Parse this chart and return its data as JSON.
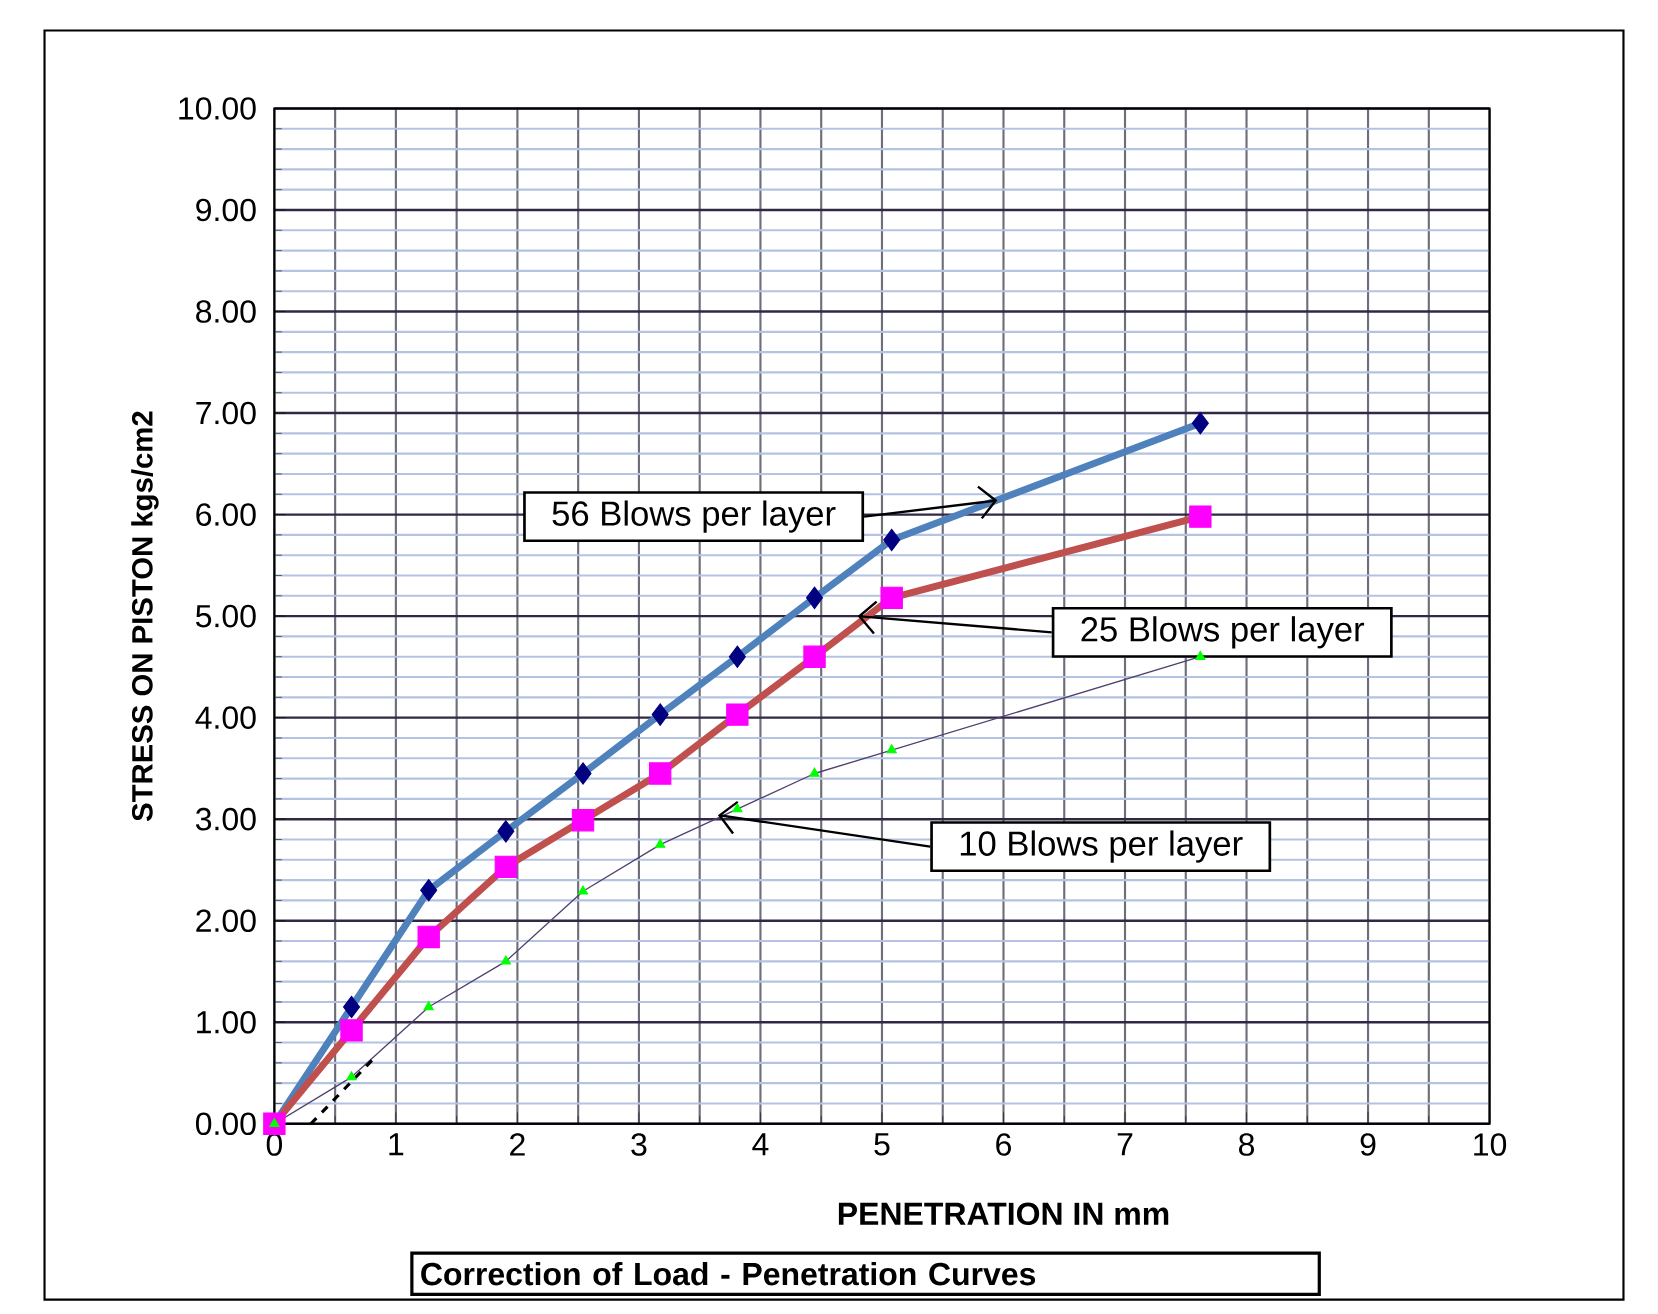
{
  "chart_data": {
    "type": "line",
    "title": "Correction of Load - Penetration Curves",
    "xlabel": "PENETRATION IN mm",
    "ylabel": "STRESS ON PISTON kgs/cm2",
    "xlim": [
      0,
      10
    ],
    "xticks": [
      0,
      {
        "value": 0.5,
        "label": null
      },
      1,
      {
        "value": 1.5,
        "label": null
      },
      2,
      {
        "value": 2.5,
        "label": null
      },
      3,
      {
        "value": 3.5,
        "label": null
      },
      4,
      {
        "value": 4.5,
        "label": null
      },
      5,
      {
        "value": 5.5,
        "label": null
      },
      6,
      {
        "value": 6.5,
        "label": null
      },
      7,
      {
        "value": 7.5,
        "label": null
      },
      8,
      {
        "value": 8.5,
        "label": null
      },
      9,
      {
        "value": 9.5,
        "label": null
      },
      10
    ],
    "ylim": [
      0,
      10
    ],
    "yticks": [
      {
        "value": 0,
        "label": "0.00"
      },
      {
        "value": 0.2,
        "label": null
      },
      {
        "value": 0.4,
        "label": null
      },
      {
        "value": 0.6,
        "label": null
      },
      {
        "value": 0.8,
        "label": null
      },
      {
        "value": 1,
        "label": "1.00"
      },
      {
        "value": 1.2,
        "label": null
      },
      {
        "value": 1.4,
        "label": null
      },
      {
        "value": 1.6,
        "label": null
      },
      {
        "value": 1.8,
        "label": null
      },
      {
        "value": 2,
        "label": "2.00"
      },
      {
        "value": 2.2,
        "label": null
      },
      {
        "value": 2.4,
        "label": null
      },
      {
        "value": 2.6,
        "label": null
      },
      {
        "value": 2.8,
        "label": null
      },
      {
        "value": 3,
        "label": "3.00"
      },
      {
        "value": 3.2,
        "label": null
      },
      {
        "value": 3.4,
        "label": null
      },
      {
        "value": 3.6,
        "label": null
      },
      {
        "value": 3.8,
        "label": null
      },
      {
        "value": 4,
        "label": "4.00"
      },
      {
        "value": 4.2,
        "label": null
      },
      {
        "value": 4.4,
        "label": null
      },
      {
        "value": 4.6,
        "label": null
      },
      {
        "value": 4.8,
        "label": null
      },
      {
        "value": 5,
        "label": "5.00"
      },
      {
        "value": 5.2,
        "label": null
      },
      {
        "value": 5.4,
        "label": null
      },
      {
        "value": 5.6,
        "label": null
      },
      {
        "value": 5.8,
        "label": null
      },
      {
        "value": 6,
        "label": "6.00"
      },
      {
        "value": 6.2,
        "label": null
      },
      {
        "value": 6.4,
        "label": null
      },
      {
        "value": 6.6,
        "label": null
      },
      {
        "value": 6.8,
        "label": null
      },
      {
        "value": 7,
        "label": "7.00"
      },
      {
        "value": 7.2,
        "label": null
      },
      {
        "value": 7.4,
        "label": null
      },
      {
        "value": 7.6,
        "label": null
      },
      {
        "value": 7.8,
        "label": null
      },
      {
        "value": 8,
        "label": "8.00"
      },
      {
        "value": 8.2,
        "label": null
      },
      {
        "value": 8.4,
        "label": null
      },
      {
        "value": 8.6,
        "label": null
      },
      {
        "value": 8.8,
        "label": null
      },
      {
        "value": 9,
        "label": "9.00"
      },
      {
        "value": 9.2,
        "label": null
      },
      {
        "value": 9.4,
        "label": null
      },
      {
        "value": 9.6,
        "label": null
      },
      {
        "value": 9.8,
        "label": null
      },
      {
        "value": 10,
        "label": "10.00"
      }
    ],
    "grid": true,
    "series": [
      {
        "color": "#4f81bd",
        "colors": [
          "#000080",
          "#000080",
          "#000080",
          "#000080",
          "#000080",
          "#000080",
          "#000080",
          "#000080",
          "#000080",
          "#000080"
        ],
        "marker": "diamond",
        "x": [
          0,
          0.635,
          1.27,
          1.905,
          2.54,
          3.175,
          3.81,
          4.445,
          5.08,
          7.62
        ],
        "values": [
          0,
          1.15,
          2.3,
          2.88,
          3.45,
          4.03,
          4.6,
          5.18,
          5.75,
          6.9
        ]
      },
      {
        "color": "#c0504d",
        "colors": [
          "#ff00ff",
          "#ff00ff",
          "#ff00ff",
          "#ff00ff",
          "#ff00ff",
          "#ff00ff",
          "#ff00ff",
          "#ff00ff",
          "#ff00ff",
          "#ff00ff"
        ],
        "marker": "square",
        "x": [
          0,
          0.635,
          1.27,
          1.905,
          2.54,
          3.175,
          3.81,
          4.445,
          5.08,
          7.62
        ],
        "values": [
          0,
          0.92,
          1.84,
          2.53,
          2.99,
          3.45,
          4.03,
          4.6,
          5.18,
          5.98
        ]
      },
      {
        "color": "#504070",
        "colors": [
          "#00ff00",
          "#00ff00",
          "#00ff00",
          "#00ff00",
          "#00ff00",
          "#00ff00",
          "#00ff00",
          "#00ff00",
          "#00ff00",
          "#00ff00"
        ],
        "marker": "triangle",
        "x": [
          0,
          0.635,
          1.27,
          1.905,
          2.54,
          3.175,
          3.81,
          4.445,
          5.08,
          7.62
        ],
        "values": [
          0,
          0.46,
          1.15,
          1.6,
          2.29,
          2.75,
          3.1,
          3.45,
          3.68,
          4.6
        ]
      },
      {
        "color": "#000000",
        "marker": "none",
        "line_style": "dashed",
        "x": [
          0.3,
          0.84
        ],
        "values": [
          0,
          0.67
        ]
      }
    ],
    "annotations": [
      {
        "text": "56 Blows per layer",
        "x": 5.95,
        "y": 6.14
      },
      {
        "text": "25 Blows per layer",
        "x": 4.8,
        "y": 5.0
      },
      {
        "text": "10 Blows per layer",
        "x": 3.65,
        "y": 3.04
      }
    ]
  }
}
